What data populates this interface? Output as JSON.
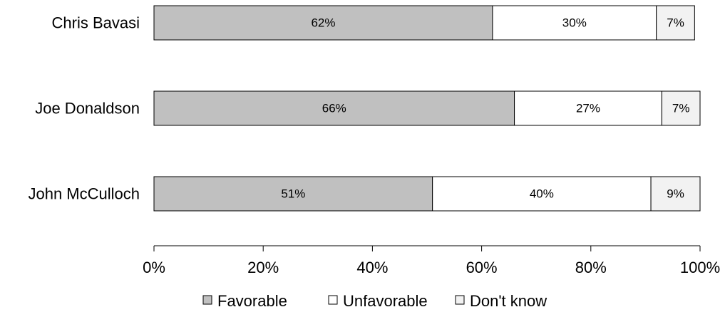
{
  "chart_data": {
    "type": "bar",
    "orientation": "horizontal",
    "stacked": true,
    "categories": [
      "Chris Bavasi",
      "Joe Donaldson",
      "John McCulloch"
    ],
    "series": [
      {
        "name": "Favorable",
        "values": [
          62,
          66,
          51
        ],
        "labels": [
          "62%",
          "66%",
          "51%"
        ],
        "color": "#c0c0c0"
      },
      {
        "name": "Unfavorable",
        "values": [
          30,
          27,
          40
        ],
        "labels": [
          "30%",
          "27%",
          "40%"
        ],
        "color": "#ffffff"
      },
      {
        "name": "Don't know",
        "values": [
          7,
          7,
          9
        ],
        "labels": [
          "7%",
          "7%",
          "9%"
        ],
        "color": "#f2f2f2"
      }
    ],
    "xlim": [
      0,
      100
    ],
    "x_ticks": [
      0,
      20,
      40,
      60,
      80,
      100
    ],
    "x_tick_labels": [
      "0%",
      "20%",
      "40%",
      "60%",
      "80%",
      "100%"
    ],
    "grid": false,
    "legend_position": "bottom",
    "title": "",
    "xlabel": "",
    "ylabel": ""
  }
}
